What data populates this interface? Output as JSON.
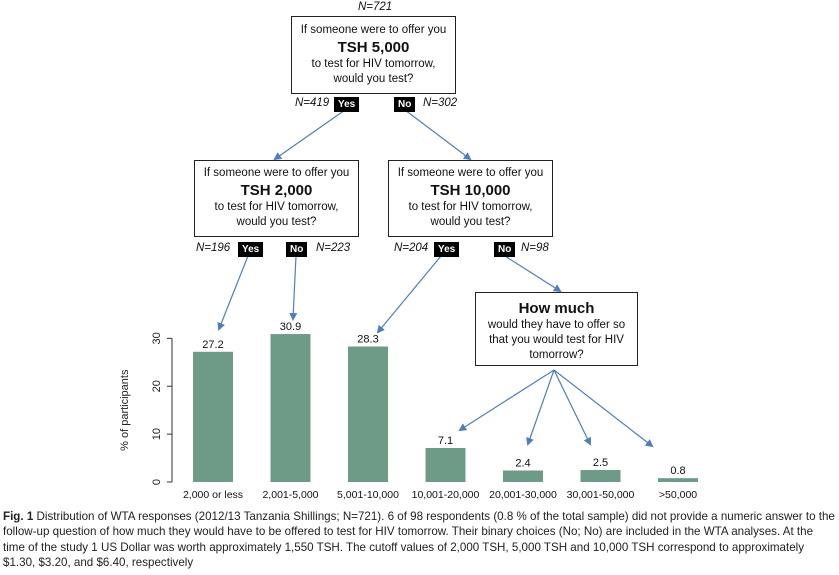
{
  "tree": {
    "root": {
      "n": "N=721",
      "line1": "If someone were to offer you",
      "amount": "TSH 5,000",
      "line2": "to test for HIV tomorrow,",
      "line3": "would you test?",
      "yes_n": "N=419",
      "no_n": "N=302"
    },
    "left": {
      "line1": "If someone were to offer you",
      "amount": "TSH 2,000",
      "line2": "to test for HIV tomorrow,",
      "line3": "would you test?",
      "yes_n": "N=196",
      "no_n": "N=223"
    },
    "right": {
      "line1": "If someone were to offer you",
      "amount": "TSH 10,000",
      "line2": "to test for HIV tomorrow,",
      "line3": "would you test?",
      "yes_n": "N=204",
      "no_n": "N=98"
    },
    "howmuch": {
      "title": "How much",
      "line1": "would they have to offer so",
      "line2": "that you would test for HIV",
      "line3": "tomorrow?"
    },
    "yes_label": "Yes",
    "no_label": "No"
  },
  "chart_data": {
    "type": "bar",
    "categories": [
      "2,000 or less",
      "2,001-5,000",
      "5,001-10,000",
      "10,001-20,000",
      "20,001-30,000",
      "30,001-50,000",
      ">50,000"
    ],
    "values": [
      27.2,
      30.9,
      28.3,
      7.1,
      2.4,
      2.5,
      0.8
    ],
    "value_labels": [
      "27.2",
      "30.9",
      "28.3",
      "7.1",
      "2.4",
      "2.5",
      "0.8"
    ],
    "ylabel": "% of participants",
    "yticks": [
      0,
      10,
      20,
      30
    ],
    "ylim": [
      0,
      33
    ],
    "bar_color": "#6e9a88"
  },
  "caption": {
    "label": "Fig. 1",
    "text": " Distribution of WTA responses (2012/13 Tanzania Shillings; N=721). 6 of 98 respondents (0.8 % of the total sample) did not provide a numeric answer to the follow-up question of how much they would have to be offered to test for HIV tomorrow. Their binary choices (No; No) are included in the WTA analyses. At the time of the study 1 US Dollar was worth approximately 1,550 TSH. The cutoff values of 2,000 TSH, 5,000 TSH and 10,000 TSH correspond to approximately $1.30, $3.20, and $6.40, respectively"
  }
}
